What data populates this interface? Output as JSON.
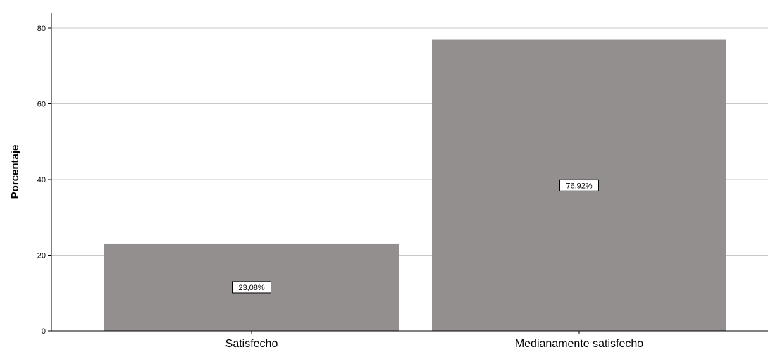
{
  "chart_data": {
    "type": "bar",
    "categories": [
      "Satisfecho",
      "Medianamente satisfecho"
    ],
    "values": [
      23.08,
      76.92
    ],
    "data_labels": [
      "23,08%",
      "76,92%"
    ],
    "title": "",
    "xlabel": "",
    "ylabel": "Porcentaje",
    "ylim": [
      0,
      80
    ],
    "yticks": [
      0,
      20,
      40,
      60,
      80
    ],
    "grid": true,
    "legend": "none",
    "colors": {
      "bar": "#938f8e",
      "grid": "#c8c8c8",
      "axis": "#000000",
      "label_box": "#ffffff"
    }
  }
}
